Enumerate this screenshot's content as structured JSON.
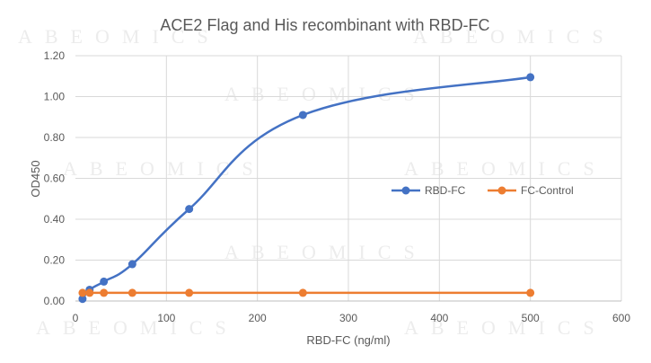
{
  "chart_data": {
    "type": "line",
    "title": "ACE2 Flag and His recombinant with RBD-FC",
    "xlabel": "RBD-FC (ng/ml)",
    "ylabel": "OD450",
    "xlim": [
      0,
      600
    ],
    "ylim": [
      0,
      1.2
    ],
    "xticks": [
      "0",
      "100",
      "200",
      "300",
      "400",
      "500",
      "600"
    ],
    "yticks": [
      "0.00",
      "0.20",
      "0.40",
      "0.60",
      "0.80",
      "1.00",
      "1.20"
    ],
    "grid": true,
    "legend_position": "right-center",
    "series": [
      {
        "name": "RBD-FC",
        "color": "#4472c4",
        "smooth": true,
        "x": [
          7.8,
          15.6,
          31.25,
          62.5,
          125,
          250,
          500
        ],
        "y": [
          0.01,
          0.055,
          0.095,
          0.18,
          0.45,
          0.91,
          1.095
        ]
      },
      {
        "name": "FC-Control",
        "color": "#ed7d31",
        "smooth": false,
        "x": [
          7.8,
          15.6,
          31.25,
          62.5,
          125,
          250,
          500
        ],
        "y": [
          0.04,
          0.04,
          0.04,
          0.04,
          0.04,
          0.04,
          0.04
        ]
      }
    ]
  },
  "watermark": "ABEOMICS"
}
